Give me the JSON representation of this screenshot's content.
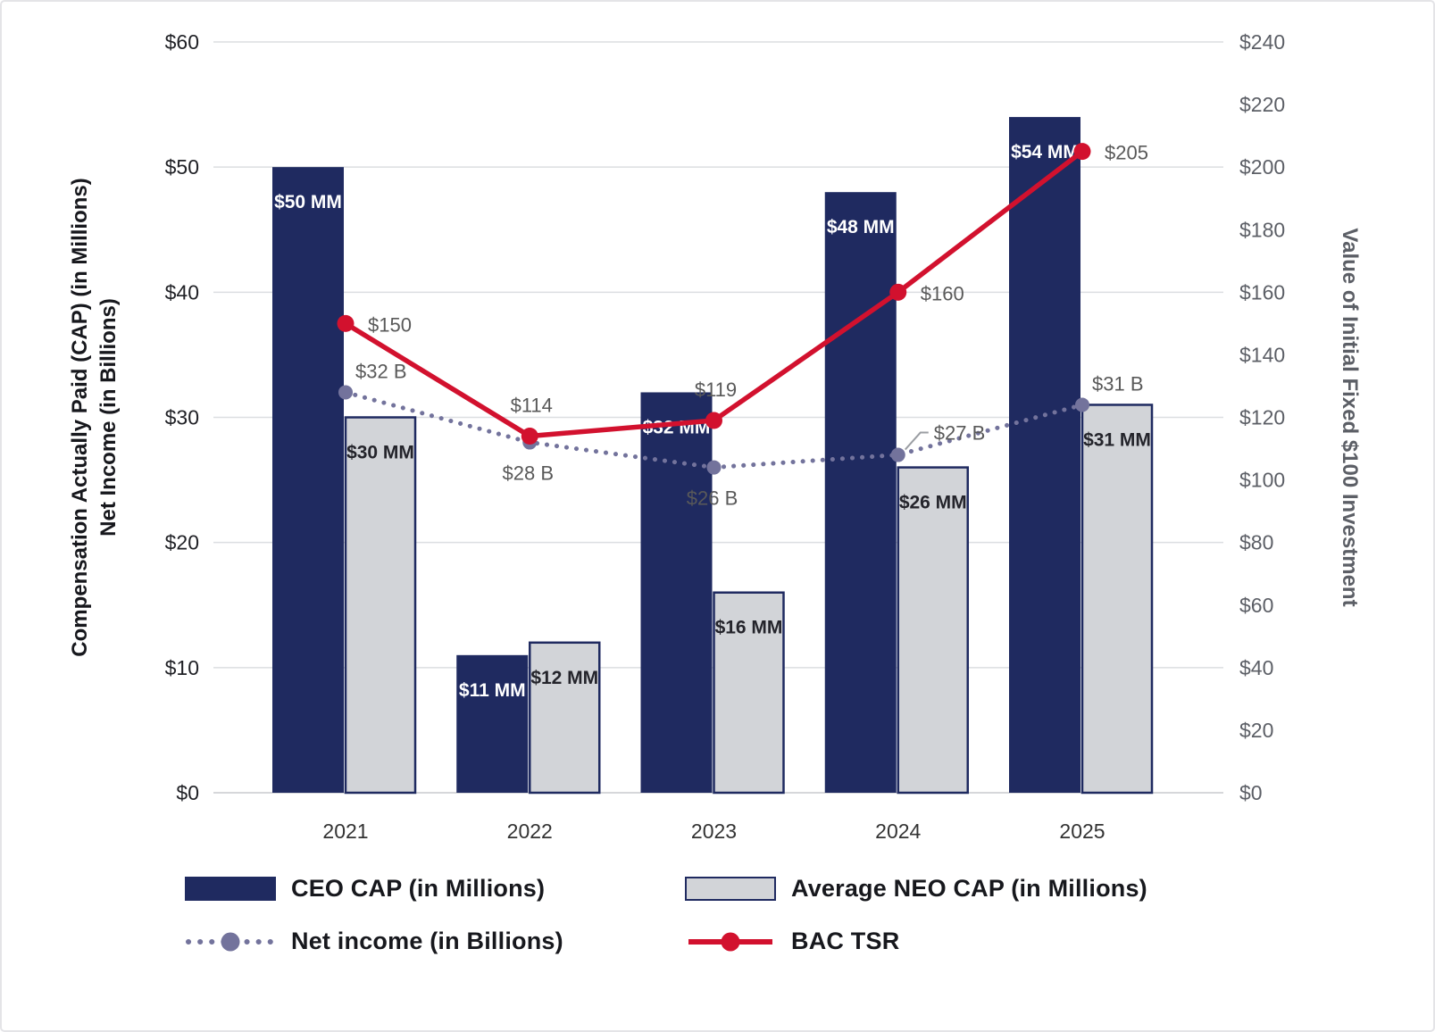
{
  "chart_data": {
    "type": "combo-bar-line",
    "categories": [
      "2021",
      "2022",
      "2023",
      "2024",
      "2025"
    ],
    "grid": true,
    "legend_position": "bottom",
    "label_color": "#595959",
    "left_axis": {
      "title_line1": "Compensation Actually Paid (CAP) (in Millions)",
      "title_line2": "Net Income (in Billions)",
      "min": 0,
      "max": 60,
      "step": 10,
      "tick_labels": [
        "$0",
        "$10",
        "$20",
        "$30",
        "$40",
        "$50",
        "$60"
      ]
    },
    "right_axis": {
      "title": "Value of Initial Fixed $100 Investment",
      "min": 0,
      "max": 240,
      "step": 20,
      "tick_labels": [
        "$0",
        "$20",
        "$40",
        "$60",
        "$80",
        "$100",
        "$120",
        "$140",
        "$160",
        "$180",
        "$200",
        "$220",
        "$240"
      ]
    },
    "series": [
      {
        "name": "CEO CAP (in Millions)",
        "type": "bar",
        "axis": "left",
        "color": "#1f2a60",
        "values": [
          50,
          11,
          32,
          48,
          54
        ],
        "labels": [
          "$50 MM",
          "$11 MM",
          "$32 MM",
          "$48 MM",
          "$54 MM"
        ]
      },
      {
        "name": "Average NEO CAP (in Millions)",
        "type": "bar",
        "axis": "left",
        "color": "#d2d4d8",
        "border_color": "#1f2a60",
        "values": [
          30,
          12,
          16,
          26,
          31
        ],
        "labels": [
          "$30 MM",
          "$12 MM",
          "$16 MM",
          "$26 MM",
          "$31 MM"
        ]
      },
      {
        "name": "Net income (in Billions)",
        "type": "dotted-line",
        "axis": "left",
        "color": "#73739c",
        "values": [
          32,
          28,
          26,
          27,
          31
        ],
        "labels": [
          "$32 B",
          "$28 B",
          "$26 B",
          "$27 B",
          "$31 B"
        ],
        "label_positions": [
          "above-right",
          "below",
          "below",
          "callout",
          "above-right"
        ]
      },
      {
        "name": "BAC TSR",
        "type": "line",
        "axis": "right",
        "color": "#d2112e",
        "values": [
          150,
          114,
          119,
          160,
          205
        ],
        "labels": [
          "$150",
          "$114",
          "$119",
          "$160",
          "$205"
        ],
        "label_positions": [
          "right",
          "above",
          "above",
          "right",
          "right"
        ]
      }
    ]
  }
}
